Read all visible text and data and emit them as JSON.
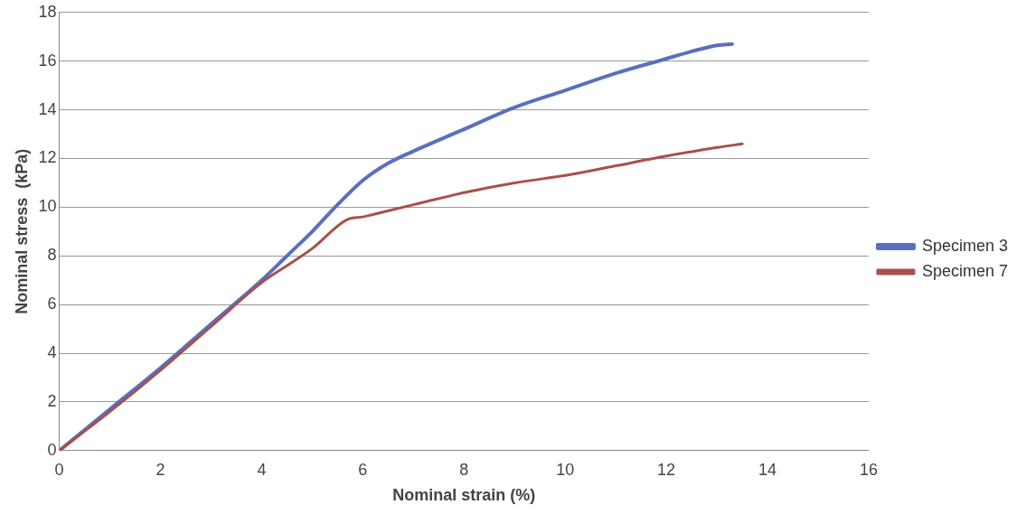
{
  "chart_data": {
    "type": "line",
    "xlabel": "Nominal strain (%)",
    "ylabel": "Nominal stress  (kPa)",
    "xlim": [
      0,
      16
    ],
    "xticks": [
      0,
      2,
      4,
      6,
      8,
      10,
      12,
      14,
      16
    ],
    "ylim": [
      0,
      18
    ],
    "yticks": [
      0,
      2,
      4,
      6,
      8,
      10,
      12,
      14,
      16,
      18
    ],
    "grid": "y",
    "legend": "right",
    "marker": "none",
    "line_style": "solid",
    "series": [
      {
        "name": "Specimen 3",
        "color": "#5a6fc0",
        "x": [
          0,
          1,
          2,
          3,
          4,
          4.5,
          5,
          5.5,
          6,
          6.5,
          7,
          8,
          9,
          10,
          11,
          12,
          12.5,
          13,
          13.3
        ],
        "values": [
          0,
          1.7,
          3.4,
          5.2,
          7,
          8,
          9,
          10.1,
          11.1,
          11.8,
          12.3,
          13.2,
          14.1,
          14.8,
          15.5,
          16.1,
          16.4,
          16.65,
          16.7
        ]
      },
      {
        "name": "Specimen 7",
        "color": "#a9504a",
        "x": [
          0,
          1,
          2,
          3,
          4,
          4.5,
          5,
          5.7,
          6,
          6.2,
          7,
          8,
          9,
          10,
          11,
          12,
          13,
          13.5
        ],
        "values": [
          0,
          1.6,
          3.3,
          5.1,
          6.9,
          7.6,
          8.3,
          9.5,
          9.6,
          9.7,
          10.1,
          10.6,
          11,
          11.3,
          11.7,
          12.1,
          12.45,
          12.6
        ]
      }
    ]
  }
}
